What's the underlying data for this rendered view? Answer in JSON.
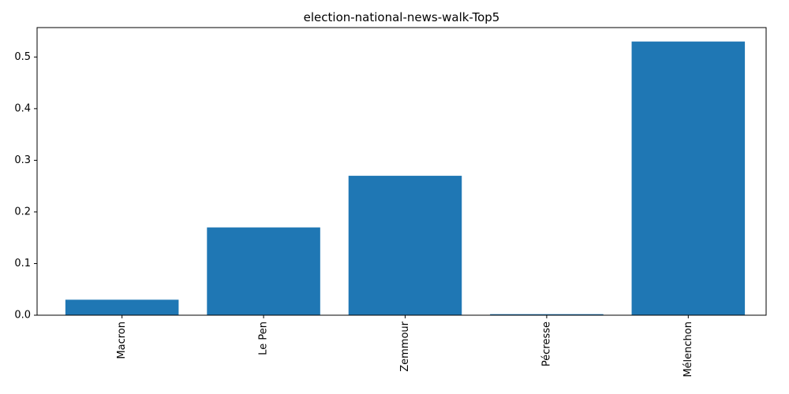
{
  "chart_data": {
    "type": "bar",
    "title": "election-national-news-walk-Top5",
    "xlabel": "",
    "ylabel": "",
    "categories": [
      "Macron",
      "Le Pen",
      "Zemmour",
      "Pécresse",
      "Mélenchon"
    ],
    "values": [
      0.03,
      0.17,
      0.27,
      0.002,
      0.53
    ],
    "ylim": [
      0,
      0.557
    ],
    "yticks": [
      0.0,
      0.1,
      0.2,
      0.3,
      0.4,
      0.5
    ],
    "ytick_labels": [
      "0.0",
      "0.1",
      "0.2",
      "0.3",
      "0.4",
      "0.5"
    ],
    "grid": false,
    "legend": "none",
    "bar_color": "#1f77b4",
    "xtick_rotation": 90
  }
}
